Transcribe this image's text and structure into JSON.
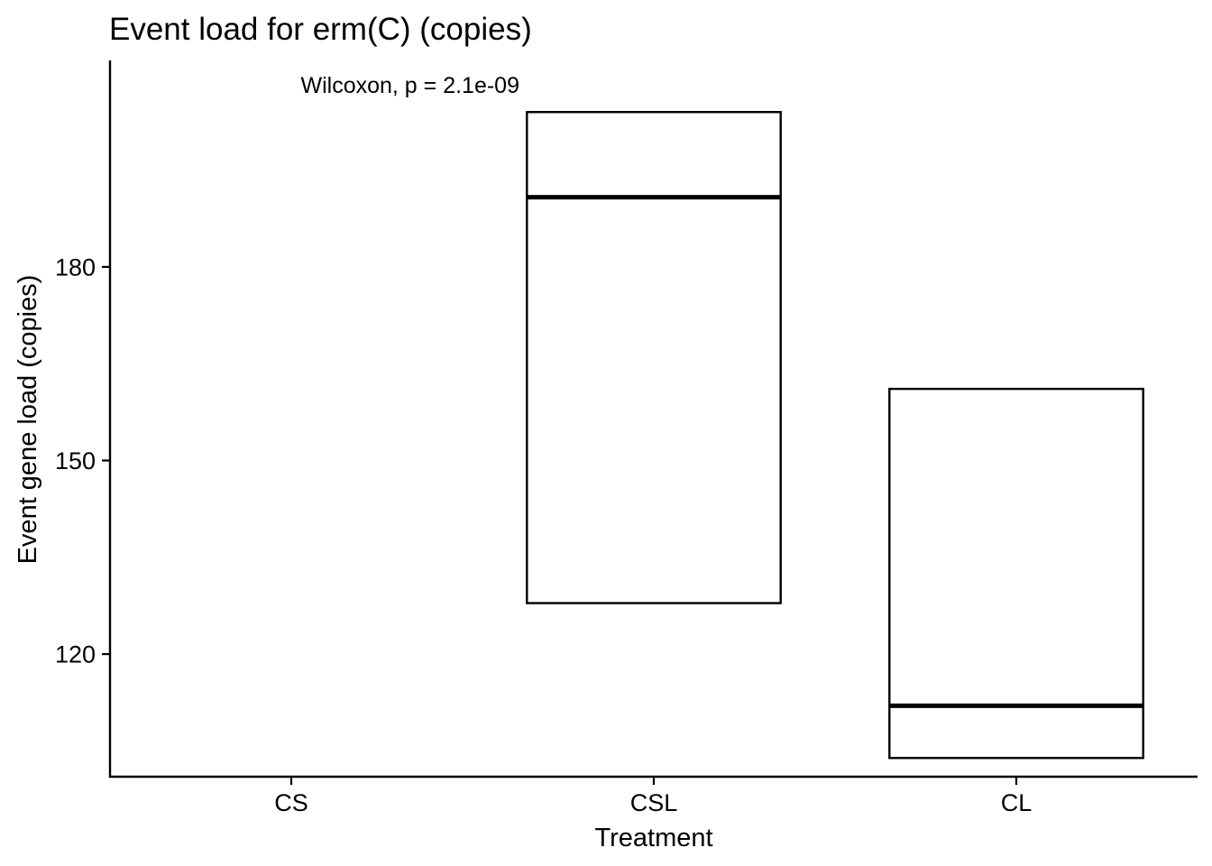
{
  "chart_data": {
    "type": "box",
    "title": "Event load for erm(C) (copies)",
    "xlabel": "Treatment",
    "ylabel": "Event gene load (copies)",
    "categories": [
      "CS",
      "CSL",
      "CL"
    ],
    "boxes": [
      {
        "category": "CS",
        "lower": null,
        "median": null,
        "upper": null
      },
      {
        "category": "CSL",
        "lower": 127.9,
        "median": 190.8,
        "upper": 204.0
      },
      {
        "category": "CL",
        "lower": 103.9,
        "median": 112.0,
        "upper": 161.1
      }
    ],
    "yticks": [
      120,
      150,
      180
    ],
    "ylim": [
      101.0,
      212.0
    ],
    "annotation": "Wilcoxon, p = 2.1e-09",
    "grid": false,
    "legend": "none"
  }
}
